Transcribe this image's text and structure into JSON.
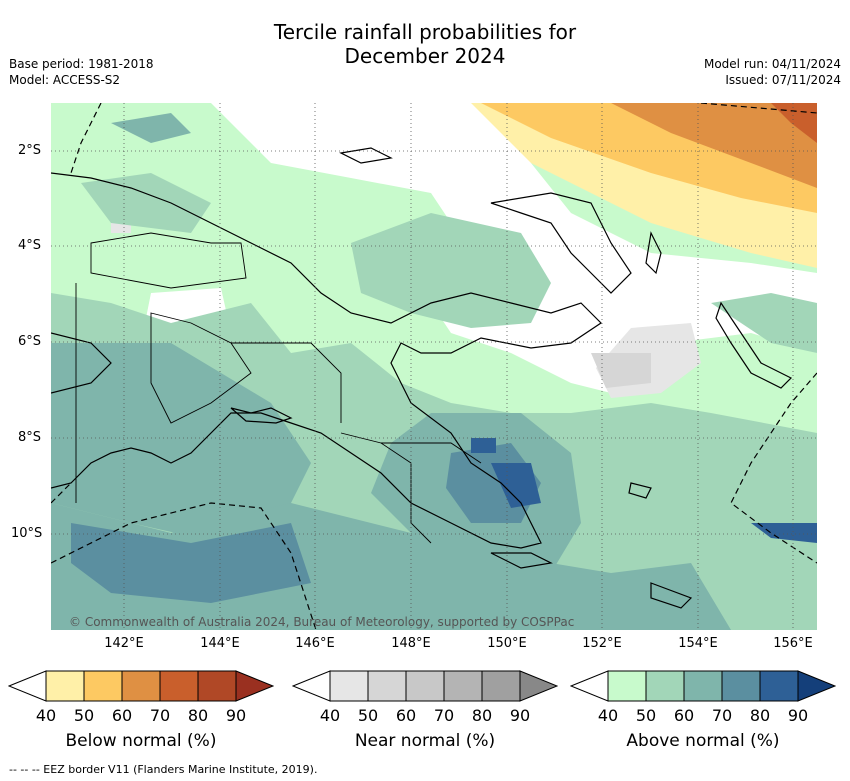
{
  "title_line1": "Tercile rainfall probabilities for",
  "title_line2": "December 2024",
  "base_period": "Base period: 1981-2018",
  "model": "Model: ACCESS-S2",
  "model_run": "Model run: 04/11/2024",
  "issued": "Issued: 07/11/2024",
  "lat_labels": [
    "2°S",
    "4°S",
    "6°S",
    "8°S",
    "10°S"
  ],
  "lon_labels": [
    "142°E",
    "144°E",
    "146°E",
    "148°E",
    "150°E",
    "152°E",
    "154°E",
    "156°E"
  ],
  "copyright": "© Commonwealth of Australia 2024, Bureau of Meteorology, supported by COSPPac",
  "colorbars": [
    {
      "title": "Below normal (%)",
      "ticks": [
        "40",
        "50",
        "60",
        "70",
        "80",
        "90"
      ],
      "colors": [
        "#fff0a8",
        "#fdc962",
        "#df9043",
        "#c95f2c",
        "#b04826",
        "#9a3020"
      ]
    },
    {
      "title": "Near normal (%)",
      "ticks": [
        "40",
        "50",
        "60",
        "70",
        "80",
        "90"
      ],
      "colors": [
        "#e6e6e6",
        "#d6d6d6",
        "#c8c8c8",
        "#b4b4b4",
        "#a0a0a0",
        "#888888"
      ]
    },
    {
      "title": "Above normal (%)",
      "ticks": [
        "40",
        "50",
        "60",
        "70",
        "80",
        "90"
      ],
      "colors": [
        "#c8facc",
        "#a2d6b8",
        "#7fb5ab",
        "#5b8fa0",
        "#2e6096",
        "#143f7a"
      ]
    }
  ],
  "footnote": "-- -- -- EEZ border V11 (Flanders Marine Institute, 2019)."
}
